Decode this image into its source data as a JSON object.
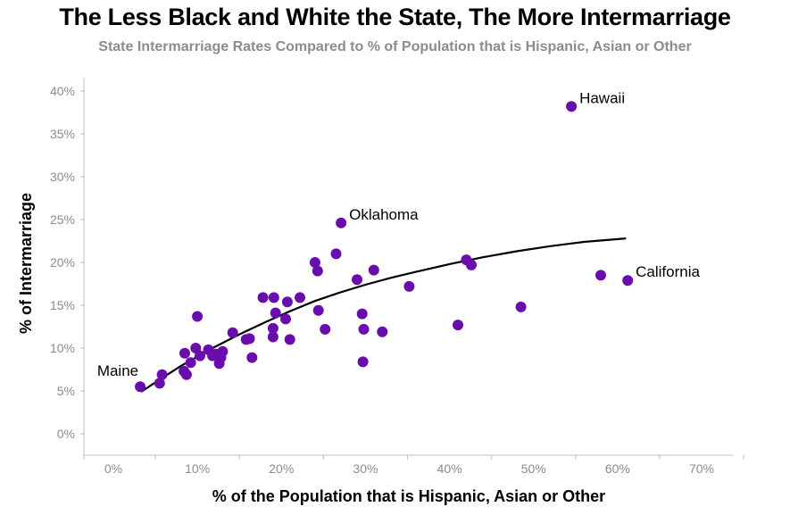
{
  "chart_data": {
    "type": "scatter",
    "title": "The Less Black and White the State, The More Intermarriage",
    "subtitle": "State Intermarriage Rates Compared to % of Population that is Hispanic, Asian or Other",
    "xlabel": "% of the Population that is Hispanic, Asian or Other",
    "ylabel": "% of Intermarriage",
    "xlim": [
      0,
      70
    ],
    "ylim": [
      0,
      40
    ],
    "xticks": [
      0,
      10,
      20,
      30,
      40,
      50,
      60,
      70
    ],
    "yticks": [
      0,
      5,
      10,
      15,
      20,
      25,
      30,
      35,
      40
    ],
    "xtick_labels": [
      "0%",
      "10%",
      "20%",
      "30%",
      "40%",
      "50%",
      "60%",
      "70%"
    ],
    "ytick_labels": [
      "0%",
      "5%",
      "10%",
      "15%",
      "20%",
      "25%",
      "30%",
      "35%",
      "40%"
    ],
    "point_color": "#6a0dad",
    "trendline_color": "#000000",
    "trendline": {
      "x": [
        3.3,
        5,
        8,
        10,
        12,
        15,
        18,
        21,
        24,
        27,
        30,
        33,
        36,
        40,
        44,
        48,
        52,
        56,
        61
      ],
      "y": [
        4.9,
        6.0,
        7.9,
        9.0,
        10.1,
        11.6,
        13.0,
        14.3,
        15.5,
        16.5,
        17.4,
        18.2,
        18.9,
        19.8,
        20.6,
        21.3,
        21.9,
        22.4,
        22.8
      ]
    },
    "points": [
      {
        "x": 54.5,
        "y": 38.2
      },
      {
        "x": 27.1,
        "y": 24.6
      },
      {
        "x": 61.2,
        "y": 17.9
      },
      {
        "x": 3.2,
        "y": 5.5
      },
      {
        "x": 26.5,
        "y": 21.0
      },
      {
        "x": 24.0,
        "y": 20.0
      },
      {
        "x": 24.3,
        "y": 19.0
      },
      {
        "x": 31.0,
        "y": 19.1
      },
      {
        "x": 42.0,
        "y": 20.3
      },
      {
        "x": 42.6,
        "y": 19.7
      },
      {
        "x": 29.0,
        "y": 18.0
      },
      {
        "x": 35.2,
        "y": 17.2
      },
      {
        "x": 58.0,
        "y": 18.5
      },
      {
        "x": 17.8,
        "y": 15.9
      },
      {
        "x": 19.1,
        "y": 15.9
      },
      {
        "x": 22.2,
        "y": 15.9
      },
      {
        "x": 20.7,
        "y": 15.4
      },
      {
        "x": 48.5,
        "y": 14.8
      },
      {
        "x": 24.4,
        "y": 14.4
      },
      {
        "x": 19.3,
        "y": 14.1
      },
      {
        "x": 29.6,
        "y": 14.0
      },
      {
        "x": 10.0,
        "y": 13.7
      },
      {
        "x": 20.5,
        "y": 13.4
      },
      {
        "x": 41.0,
        "y": 12.7
      },
      {
        "x": 19.0,
        "y": 12.3
      },
      {
        "x": 25.2,
        "y": 12.2
      },
      {
        "x": 29.8,
        "y": 12.2
      },
      {
        "x": 32.0,
        "y": 11.9
      },
      {
        "x": 14.2,
        "y": 11.8
      },
      {
        "x": 19.0,
        "y": 11.3
      },
      {
        "x": 16.2,
        "y": 11.1
      },
      {
        "x": 15.8,
        "y": 11.0
      },
      {
        "x": 21.0,
        "y": 11.0
      },
      {
        "x": 9.8,
        "y": 10.0
      },
      {
        "x": 11.3,
        "y": 9.8
      },
      {
        "x": 13.0,
        "y": 9.6
      },
      {
        "x": 8.5,
        "y": 9.4
      },
      {
        "x": 12.2,
        "y": 9.3
      },
      {
        "x": 11.8,
        "y": 9.1
      },
      {
        "x": 10.3,
        "y": 9.1
      },
      {
        "x": 12.8,
        "y": 8.9
      },
      {
        "x": 16.5,
        "y": 8.9
      },
      {
        "x": 9.2,
        "y": 8.3
      },
      {
        "x": 12.6,
        "y": 8.2
      },
      {
        "x": 29.7,
        "y": 8.4
      },
      {
        "x": 8.4,
        "y": 7.3
      },
      {
        "x": 8.7,
        "y": 6.9
      },
      {
        "x": 5.8,
        "y": 6.9
      },
      {
        "x": 5.5,
        "y": 5.9
      }
    ],
    "annotations": [
      {
        "text": "Hawaii",
        "x": 54.5,
        "y": 38.2,
        "pos": "upper-right"
      },
      {
        "text": "Oklahoma",
        "x": 27.1,
        "y": 24.6,
        "pos": "upper-right"
      },
      {
        "text": "California",
        "x": 61.2,
        "y": 17.9,
        "pos": "upper-right"
      },
      {
        "text": "Maine",
        "x": 3.2,
        "y": 5.5,
        "pos": "upper-left"
      }
    ]
  }
}
